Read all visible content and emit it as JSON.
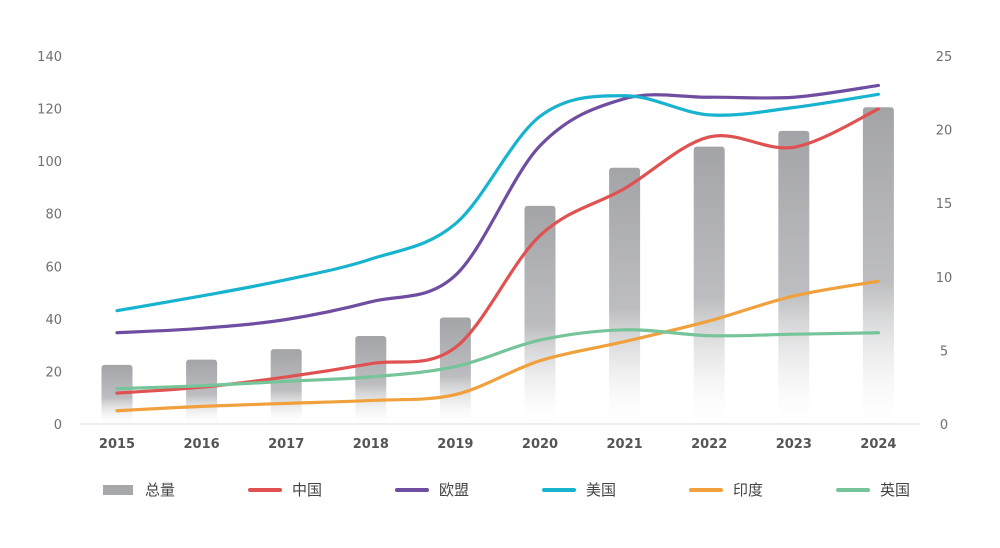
{
  "chart_data": {
    "type": "bar",
    "title": "",
    "xlabel": "",
    "ylabel": "",
    "categories": [
      "2015",
      "2016",
      "2017",
      "2018",
      "2019",
      "2020",
      "2021",
      "2022",
      "2023",
      "2024"
    ],
    "y_left": {
      "lim": [
        0,
        140
      ],
      "ticks": [
        "0",
        "20",
        "40",
        "60",
        "80",
        "100",
        "120",
        "140"
      ]
    },
    "y_right": {
      "lim": [
        0,
        25
      ],
      "ticks": [
        "0",
        "5",
        "10",
        "15",
        "20",
        "25"
      ]
    },
    "grid": false,
    "legend_position": "bottom",
    "series": [
      {
        "name": "总量",
        "kind": "bar",
        "axis": "left",
        "color": "#a7a8ab",
        "values": [
          22.5,
          24.5,
          28.5,
          33.5,
          40.5,
          83,
          97.5,
          105.5,
          111.5,
          120.5
        ]
      },
      {
        "name": "中国",
        "kind": "line",
        "axis": "right",
        "color": "#e05252",
        "values": [
          2.1,
          2.5,
          3.2,
          4.1,
          5.2,
          12.8,
          16.0,
          19.5,
          18.8,
          21.4
        ]
      },
      {
        "name": "欧盟",
        "kind": "line",
        "axis": "right",
        "color": "#6f4ea1",
        "values": [
          6.2,
          6.5,
          7.1,
          8.3,
          10.1,
          18.9,
          22.1,
          22.2,
          22.2,
          23.0
        ]
      },
      {
        "name": "美国",
        "kind": "line",
        "axis": "right",
        "color": "#17b3cf",
        "values": [
          7.7,
          8.7,
          9.8,
          11.2,
          13.6,
          20.9,
          22.3,
          21.0,
          21.5,
          22.4
        ]
      },
      {
        "name": "印度",
        "kind": "line",
        "axis": "right",
        "color": "#f0a03c",
        "values": [
          0.9,
          1.2,
          1.4,
          1.6,
          2.0,
          4.3,
          5.6,
          7.0,
          8.7,
          9.7
        ]
      },
      {
        "name": "英国",
        "kind": "line",
        "axis": "right",
        "color": "#76c49a",
        "values": [
          2.4,
          2.6,
          2.9,
          3.2,
          3.9,
          5.7,
          6.4,
          6.0,
          6.1,
          6.2
        ]
      }
    ]
  }
}
